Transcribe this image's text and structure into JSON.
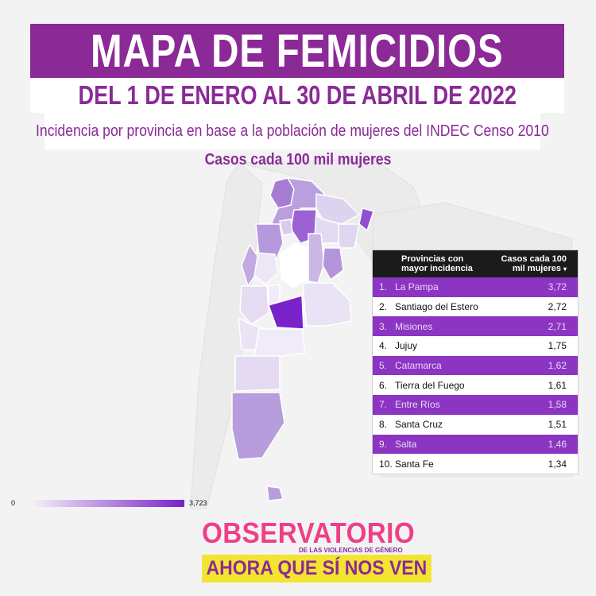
{
  "header": {
    "title": "MAPA DE FEMICIDIOS",
    "subtitle": "DEL 1 DE ENERO AL 30 DE ABRIL DE 2022",
    "description": "Incidencia por provincia en base a la población de mujeres del INDEC Censo 2010",
    "legend_title": "Casos cada 100 mil mujeres"
  },
  "colors": {
    "brand": "#8b2a96",
    "accent": "#ef3f86",
    "highlight": "#f2e431",
    "row_highlight": "#8b35c2"
  },
  "table": {
    "col_province": "Provincias con mayor incidencia",
    "col_value": "Casos cada 100 mil mujeres",
    "rows": [
      {
        "rank": "1.",
        "province": "La Pampa",
        "value": "3,72"
      },
      {
        "rank": "2.",
        "province": "Santiago del Estero",
        "value": "2,72"
      },
      {
        "rank": "3.",
        "province": "Misiones",
        "value": "2,71"
      },
      {
        "rank": "4.",
        "province": "Jujuy",
        "value": "1,75"
      },
      {
        "rank": "5.",
        "province": "Catamarca",
        "value": "1,62"
      },
      {
        "rank": "6.",
        "province": "Tierra del Fuego",
        "value": "1,61"
      },
      {
        "rank": "7.",
        "province": "Entre Ríos",
        "value": "1,58"
      },
      {
        "rank": "8.",
        "province": "Santa Cruz",
        "value": "1,51"
      },
      {
        "rank": "9.",
        "province": "Salta",
        "value": "1,46"
      },
      {
        "rank": "10.",
        "province": "Santa Fe",
        "value": "1,34"
      }
    ]
  },
  "scale": {
    "min_label": "0",
    "max_label": "3,723"
  },
  "logo": {
    "top": "OBSERVATORIO",
    "small": "DE LAS VIOLENCIAS DE GÉNERO",
    "bottom": "AHORA QUE SÍ NOS VEN"
  }
}
